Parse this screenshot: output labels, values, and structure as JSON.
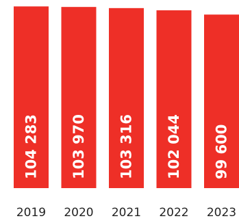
{
  "chart_data": {
    "type": "bar",
    "orientation": "vertical",
    "categories": [
      "2019",
      "2020",
      "2021",
      "2022",
      "2023"
    ],
    "values": [
      104283,
      103970,
      103316,
      102044,
      99600
    ],
    "data_labels": [
      "104 283",
      "103 970",
      "103 316",
      "102 044",
      "99 600"
    ],
    "title": "",
    "xlabel": "",
    "ylabel": "",
    "ylim": [
      0,
      106000
    ],
    "grid": false,
    "legend": "none",
    "colors": {
      "bar": "#ee2f27",
      "bar_label": "#ffffff",
      "tick_label": "#222222"
    }
  }
}
